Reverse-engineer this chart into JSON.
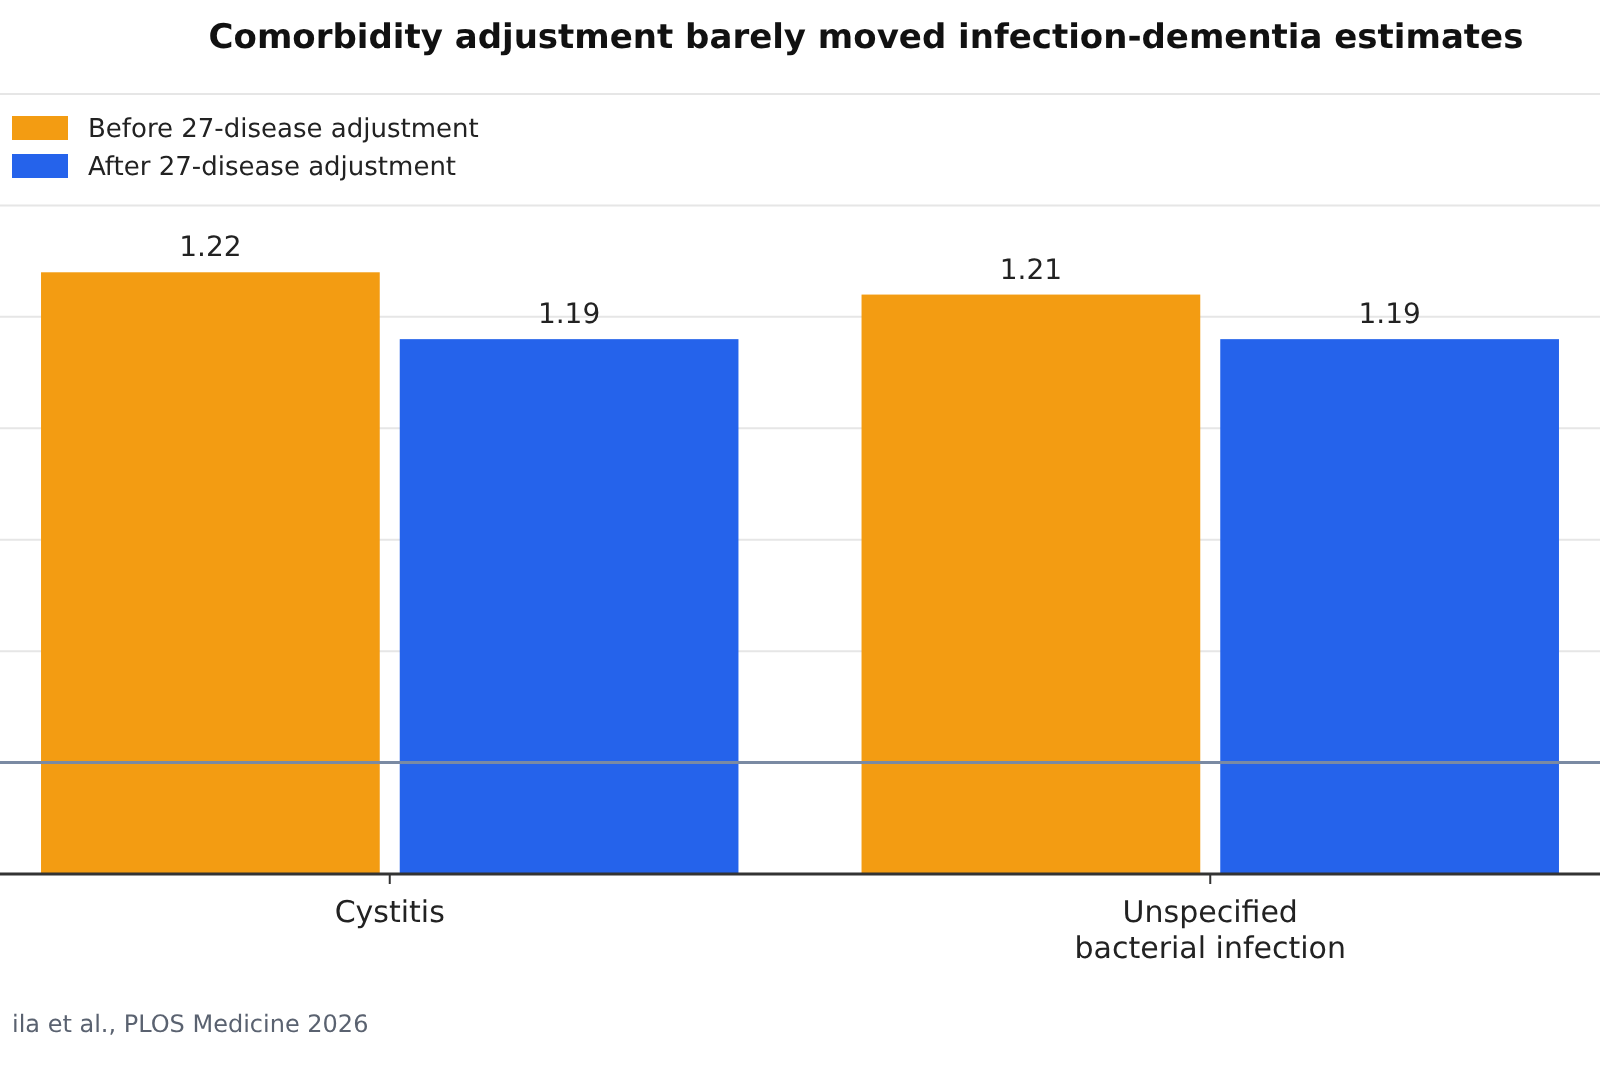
{
  "chart_data": {
    "type": "bar",
    "title": "Comorbidity adjustment barely moved infection-dementia estimates",
    "categories": [
      "Cystitis",
      "Unspecified bacterial infection"
    ],
    "series": [
      {
        "name": "Before 27-disease adjustment",
        "color": "#f39c12",
        "values": [
          1.22,
          1.21
        ]
      },
      {
        "name": "After 27-disease adjustment",
        "color": "#2563eb",
        "values": [
          1.19,
          1.19
        ]
      }
    ],
    "ylim": [
      0.95,
      1.3
    ],
    "yticks": [
      {
        "value": 0.95,
        "label": null
      },
      {
        "value": 1.0,
        "label": null
      },
      {
        "value": 1.05,
        "label": null
      },
      {
        "value": 1.1,
        "label": null
      },
      {
        "value": 1.15,
        "label": null
      },
      {
        "value": 1.2,
        "label": null
      },
      {
        "value": 1.25,
        "label": null
      },
      {
        "value": 1.3,
        "label": null
      }
    ],
    "tick_labels": "x",
    "grid": "y",
    "legend": "top left",
    "data_labels": true,
    "ref_lines": [
      {
        "axis": "y",
        "value": 1.0,
        "color": "#7a8aa3"
      }
    ],
    "annotations": [
      "ila et al., PLOS Medicine 2026"
    ]
  }
}
